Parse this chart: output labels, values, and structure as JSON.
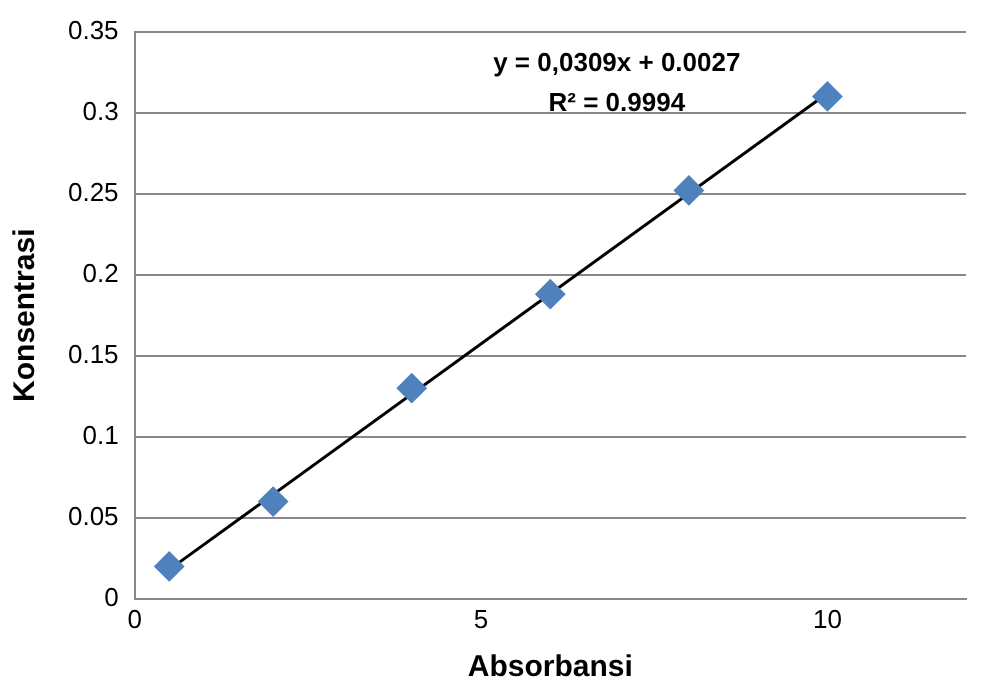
{
  "chart_data": {
    "type": "scatter",
    "xlabel": "Absorbansi",
    "ylabel": "Konsentrasi",
    "x": [
      0.5,
      2,
      4,
      6,
      8,
      10
    ],
    "series": [
      {
        "type": "scatter",
        "color": "#4f81bd",
        "marker": "diamond",
        "values": [
          0.02,
          0.06,
          0.13,
          0.188,
          0.252,
          0.31
        ]
      },
      {
        "type": "line",
        "color": "#000000",
        "marker": "none",
        "x": [
          0.5,
          10
        ],
        "values": [
          0.018,
          0.312
        ]
      }
    ],
    "xlim": [
      0,
      12
    ],
    "xticks": [
      0,
      5,
      10
    ],
    "ylim": [
      0,
      0.35
    ],
    "yticks": [
      0,
      0.05,
      0.1,
      0.15,
      0.2,
      0.25,
      0.3,
      0.35
    ],
    "grid": "y",
    "legend": false,
    "annotations": [
      "y = 0,0309x + 0.0027",
      "R² = 0.9994"
    ]
  }
}
